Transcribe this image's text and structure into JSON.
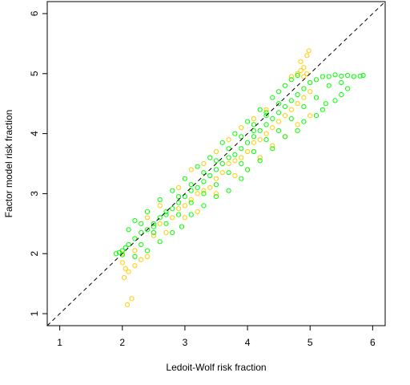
{
  "chart_data": {
    "type": "scatter",
    "title": "",
    "xlabel": "Ledoit-Wolf risk fraction",
    "ylabel": "Factor model risk fraction",
    "xlim": [
      0.8,
      6.2
    ],
    "ylim": [
      0.8,
      6.2
    ],
    "xticks": [
      "1",
      "2",
      "3",
      "4",
      "5",
      "6"
    ],
    "yticks": [
      "1",
      "2",
      "3",
      "4",
      "5",
      "6"
    ],
    "grid": false,
    "legend": "none",
    "reference_line": {
      "style": "dashed",
      "slope": 1,
      "intercept": 0,
      "color": "#000000"
    },
    "series": [
      {
        "color": "#FFCC00",
        "marker": "open-circle",
        "points": [
          [
            2.0,
            1.85
          ],
          [
            2.05,
            1.75
          ],
          [
            2.03,
            1.6
          ],
          [
            2.1,
            1.7
          ],
          [
            2.2,
            1.8
          ],
          [
            2.3,
            1.9
          ],
          [
            2.4,
            1.95
          ],
          [
            2.15,
            1.25
          ],
          [
            2.08,
            1.15
          ],
          [
            2.0,
            2.0
          ],
          [
            2.2,
            2.05
          ],
          [
            2.5,
            2.3
          ],
          [
            2.6,
            2.5
          ],
          [
            2.7,
            2.35
          ],
          [
            2.8,
            2.6
          ],
          [
            2.9,
            2.75
          ],
          [
            3.0,
            2.8
          ],
          [
            3.1,
            2.9
          ],
          [
            3.2,
            3.0
          ],
          [
            3.3,
            3.05
          ],
          [
            3.4,
            3.1
          ],
          [
            3.5,
            3.25
          ],
          [
            3.6,
            3.35
          ],
          [
            3.7,
            3.5
          ],
          [
            3.8,
            3.55
          ],
          [
            3.9,
            3.6
          ],
          [
            4.0,
            3.7
          ],
          [
            4.1,
            3.85
          ],
          [
            4.2,
            3.9
          ],
          [
            4.3,
            4.0
          ],
          [
            4.4,
            4.1
          ],
          [
            4.5,
            4.2
          ],
          [
            4.6,
            4.3
          ],
          [
            4.7,
            4.4
          ],
          [
            4.8,
            4.5
          ],
          [
            4.9,
            4.6
          ],
          [
            5.0,
            4.7
          ],
          [
            4.95,
            5.0
          ],
          [
            4.9,
            5.1
          ],
          [
            4.85,
            5.2
          ],
          [
            4.95,
            5.3
          ],
          [
            4.98,
            5.38
          ],
          [
            4.9,
            4.95
          ],
          [
            4.8,
            5.0
          ],
          [
            4.7,
            4.95
          ],
          [
            4.85,
            5.05
          ],
          [
            2.4,
            2.6
          ],
          [
            2.6,
            2.8
          ],
          [
            2.9,
            3.1
          ],
          [
            3.1,
            3.4
          ],
          [
            3.3,
            3.5
          ],
          [
            3.5,
            3.7
          ],
          [
            3.7,
            3.9
          ],
          [
            3.9,
            4.1
          ],
          [
            4.1,
            4.25
          ],
          [
            4.3,
            4.4
          ],
          [
            3.0,
            2.6
          ],
          [
            3.2,
            2.7
          ],
          [
            3.5,
            3.0
          ],
          [
            3.8,
            3.3
          ],
          [
            4.0,
            3.4
          ],
          [
            4.2,
            3.6
          ],
          [
            4.4,
            3.8
          ],
          [
            4.6,
            3.95
          ],
          [
            4.8,
            4.15
          ],
          [
            5.0,
            4.3
          ]
        ]
      },
      {
        "color": "#00FF00",
        "marker": "open-circle",
        "points": [
          [
            1.9,
            2.0
          ],
          [
            1.95,
            2.02
          ],
          [
            2.0,
            2.05
          ],
          [
            2.05,
            2.1
          ],
          [
            2.1,
            2.15
          ],
          [
            2.2,
            2.25
          ],
          [
            2.3,
            2.35
          ],
          [
            2.4,
            2.4
          ],
          [
            2.5,
            2.5
          ],
          [
            2.6,
            2.6
          ],
          [
            2.7,
            2.65
          ],
          [
            2.8,
            2.75
          ],
          [
            2.9,
            2.85
          ],
          [
            3.0,
            2.95
          ],
          [
            3.1,
            3.05
          ],
          [
            3.2,
            3.1
          ],
          [
            3.3,
            3.2
          ],
          [
            3.4,
            3.3
          ],
          [
            3.5,
            3.4
          ],
          [
            3.6,
            3.5
          ],
          [
            3.7,
            3.6
          ],
          [
            3.8,
            3.65
          ],
          [
            3.9,
            3.75
          ],
          [
            4.0,
            3.85
          ],
          [
            4.1,
            3.95
          ],
          [
            4.2,
            4.05
          ],
          [
            4.3,
            4.15
          ],
          [
            4.4,
            4.25
          ],
          [
            4.5,
            4.35
          ],
          [
            4.6,
            4.45
          ],
          [
            4.7,
            4.55
          ],
          [
            4.8,
            4.65
          ],
          [
            4.9,
            4.75
          ],
          [
            5.0,
            4.85
          ],
          [
            5.1,
            4.9
          ],
          [
            5.2,
            4.95
          ],
          [
            5.3,
            4.95
          ],
          [
            5.4,
            4.98
          ],
          [
            5.5,
            4.96
          ],
          [
            5.6,
            4.97
          ],
          [
            5.7,
            4.95
          ],
          [
            5.8,
            4.96
          ],
          [
            5.85,
            4.97
          ],
          [
            5.5,
            4.85
          ],
          [
            5.6,
            4.75
          ],
          [
            5.5,
            4.65
          ],
          [
            5.4,
            4.55
          ],
          [
            5.25,
            4.5
          ],
          [
            5.2,
            4.4
          ],
          [
            5.1,
            4.3
          ],
          [
            4.9,
            4.2
          ],
          [
            4.8,
            4.05
          ],
          [
            4.6,
            3.95
          ],
          [
            4.4,
            3.75
          ],
          [
            4.2,
            3.55
          ],
          [
            4.0,
            3.4
          ],
          [
            3.9,
            3.25
          ],
          [
            3.7,
            3.05
          ],
          [
            3.5,
            2.95
          ],
          [
            3.3,
            2.8
          ],
          [
            3.1,
            2.65
          ],
          [
            2.95,
            2.45
          ],
          [
            2.8,
            2.35
          ],
          [
            2.6,
            2.2
          ],
          [
            2.4,
            2.05
          ],
          [
            2.2,
            1.95
          ],
          [
            2.1,
            2.4
          ],
          [
            2.2,
            2.55
          ],
          [
            2.4,
            2.7
          ],
          [
            2.6,
            2.9
          ],
          [
            2.8,
            3.05
          ],
          [
            3.0,
            3.25
          ],
          [
            3.2,
            3.45
          ],
          [
            3.4,
            3.6
          ],
          [
            3.6,
            3.85
          ],
          [
            3.8,
            4.0
          ],
          [
            4.0,
            4.2
          ],
          [
            4.2,
            4.4
          ],
          [
            4.4,
            4.6
          ],
          [
            4.6,
            4.8
          ],
          [
            4.8,
            4.97
          ],
          [
            4.5,
            4.7
          ],
          [
            4.7,
            4.9
          ],
          [
            2.0,
            1.98
          ],
          [
            2.3,
            2.5
          ],
          [
            2.5,
            2.35
          ],
          [
            2.7,
            2.5
          ],
          [
            2.9,
            2.65
          ],
          [
            3.1,
            2.85
          ],
          [
            3.3,
            3.0
          ],
          [
            3.5,
            3.15
          ],
          [
            3.7,
            3.35
          ],
          [
            3.9,
            3.5
          ],
          [
            4.1,
            3.7
          ],
          [
            4.3,
            3.9
          ],
          [
            4.5,
            4.05
          ],
          [
            4.7,
            4.25
          ],
          [
            4.9,
            4.45
          ],
          [
            5.1,
            4.6
          ],
          [
            5.3,
            4.8
          ],
          [
            4.1,
            4.05
          ],
          [
            4.3,
            4.3
          ],
          [
            2.3,
            2.15
          ],
          [
            2.5,
            2.45
          ],
          [
            2.7,
            2.7
          ],
          [
            2.9,
            2.95
          ],
          [
            3.1,
            3.15
          ],
          [
            3.3,
            3.35
          ],
          [
            3.5,
            3.55
          ],
          [
            3.7,
            3.75
          ],
          [
            3.9,
            3.95
          ],
          [
            4.1,
            4.15
          ],
          [
            4.3,
            4.35
          ],
          [
            4.5,
            4.5
          ]
        ]
      }
    ]
  }
}
